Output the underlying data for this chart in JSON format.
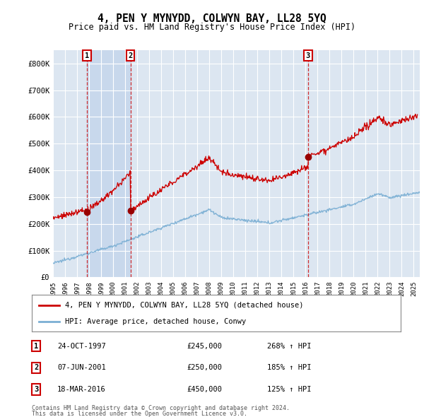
{
  "title": "4, PEN Y MYNYDD, COLWYN BAY, LL28 5YQ",
  "subtitle": "Price paid vs. HM Land Registry's House Price Index (HPI)",
  "ylim": [
    0,
    850000
  ],
  "yticks": [
    0,
    100000,
    200000,
    300000,
    400000,
    500000,
    600000,
    700000,
    800000
  ],
  "ytick_labels": [
    "£0",
    "£100K",
    "£200K",
    "£300K",
    "£400K",
    "£500K",
    "£600K",
    "£700K",
    "£800K"
  ],
  "plot_bg_color": "#dce6f1",
  "shaded_region_color": "#c8d8ec",
  "grid_color": "#ffffff",
  "hpi_line_color": "#7bafd4",
  "price_line_color": "#cc0000",
  "sale_dot_color": "#990000",
  "sales": [
    {
      "date_num": 1997.82,
      "price": 245000,
      "label": "1"
    },
    {
      "date_num": 2001.44,
      "price": 250000,
      "label": "2"
    },
    {
      "date_num": 2016.21,
      "price": 450000,
      "label": "3"
    }
  ],
  "sale_table": [
    {
      "num": "1",
      "date": "24-OCT-1997",
      "price": "£245,000",
      "hpi": "268% ↑ HPI"
    },
    {
      "num": "2",
      "date": "07-JUN-2001",
      "price": "£250,000",
      "hpi": "185% ↑ HPI"
    },
    {
      "num": "3",
      "date": "18-MAR-2016",
      "price": "£450,000",
      "hpi": "125% ↑ HPI"
    }
  ],
  "legend_property": "4, PEN Y MYNYDD, COLWYN BAY, LL28 5YQ (detached house)",
  "legend_hpi": "HPI: Average price, detached house, Conwy",
  "footer1": "Contains HM Land Registry data © Crown copyright and database right 2024.",
  "footer2": "This data is licensed under the Open Government Licence v3.0.",
  "xlim_start": 1995.0,
  "xlim_end": 2025.5
}
